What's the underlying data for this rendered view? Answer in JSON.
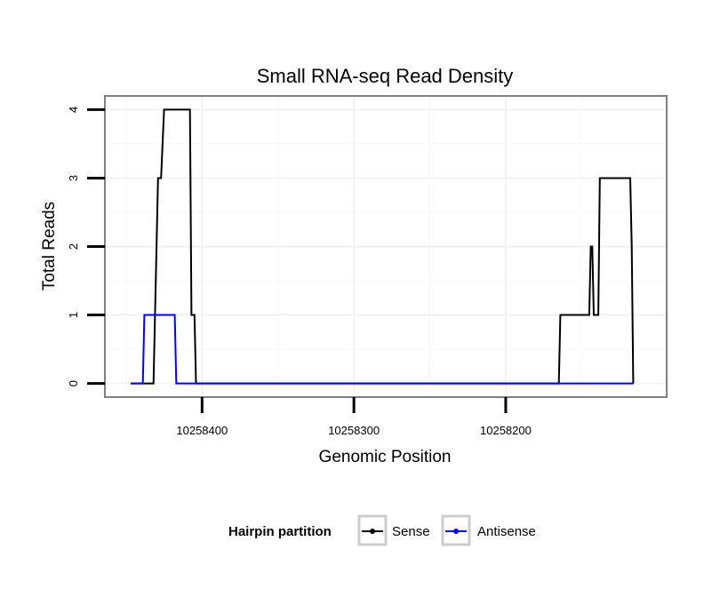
{
  "chart_data": {
    "type": "line",
    "title": "Small RNA-seq Read Density",
    "xlabel": "Genomic Position",
    "ylabel": "Total Reads",
    "xlim": [
      10258464,
      10258094
    ],
    "ylim": [
      -0.2,
      4.2
    ],
    "x_reversed": true,
    "x_ticks": [
      10258400,
      10258300,
      10258200
    ],
    "x_tick_labels": [
      "10258400",
      "10258300",
      "10258200"
    ],
    "y_ticks": [
      0,
      1,
      2,
      3,
      4
    ],
    "y_tick_labels": [
      "0",
      "1",
      "2",
      "3",
      "4"
    ],
    "grid": true,
    "legend": {
      "title": "Hairpin partition",
      "position": "bottom",
      "entries": [
        "Sense",
        "Antisense"
      ]
    },
    "series": [
      {
        "name": "Sense",
        "color": "#000000",
        "x": [
          10258447,
          10258432,
          10258430,
          10258429,
          10258427,
          10258425,
          10258423,
          10258408,
          10258407,
          10258405,
          10258404,
          10258403,
          10258165,
          10258164,
          10258145,
          10258144,
          10258143,
          10258142,
          10258139,
          10258138,
          10258118,
          10258117,
          10258116
        ],
        "y": [
          0,
          0,
          2,
          3,
          3,
          4,
          4,
          4,
          1,
          1,
          0,
          0,
          0,
          1,
          1,
          2,
          2,
          1,
          1,
          3,
          3,
          2,
          0
        ]
      },
      {
        "name": "Antisense",
        "color": "#0000ff",
        "x": [
          10258447,
          10258439,
          10258438,
          10258418,
          10258417,
          10258403,
          10258116
        ],
        "y": [
          0,
          0,
          1,
          1,
          0,
          0,
          0
        ]
      }
    ]
  }
}
